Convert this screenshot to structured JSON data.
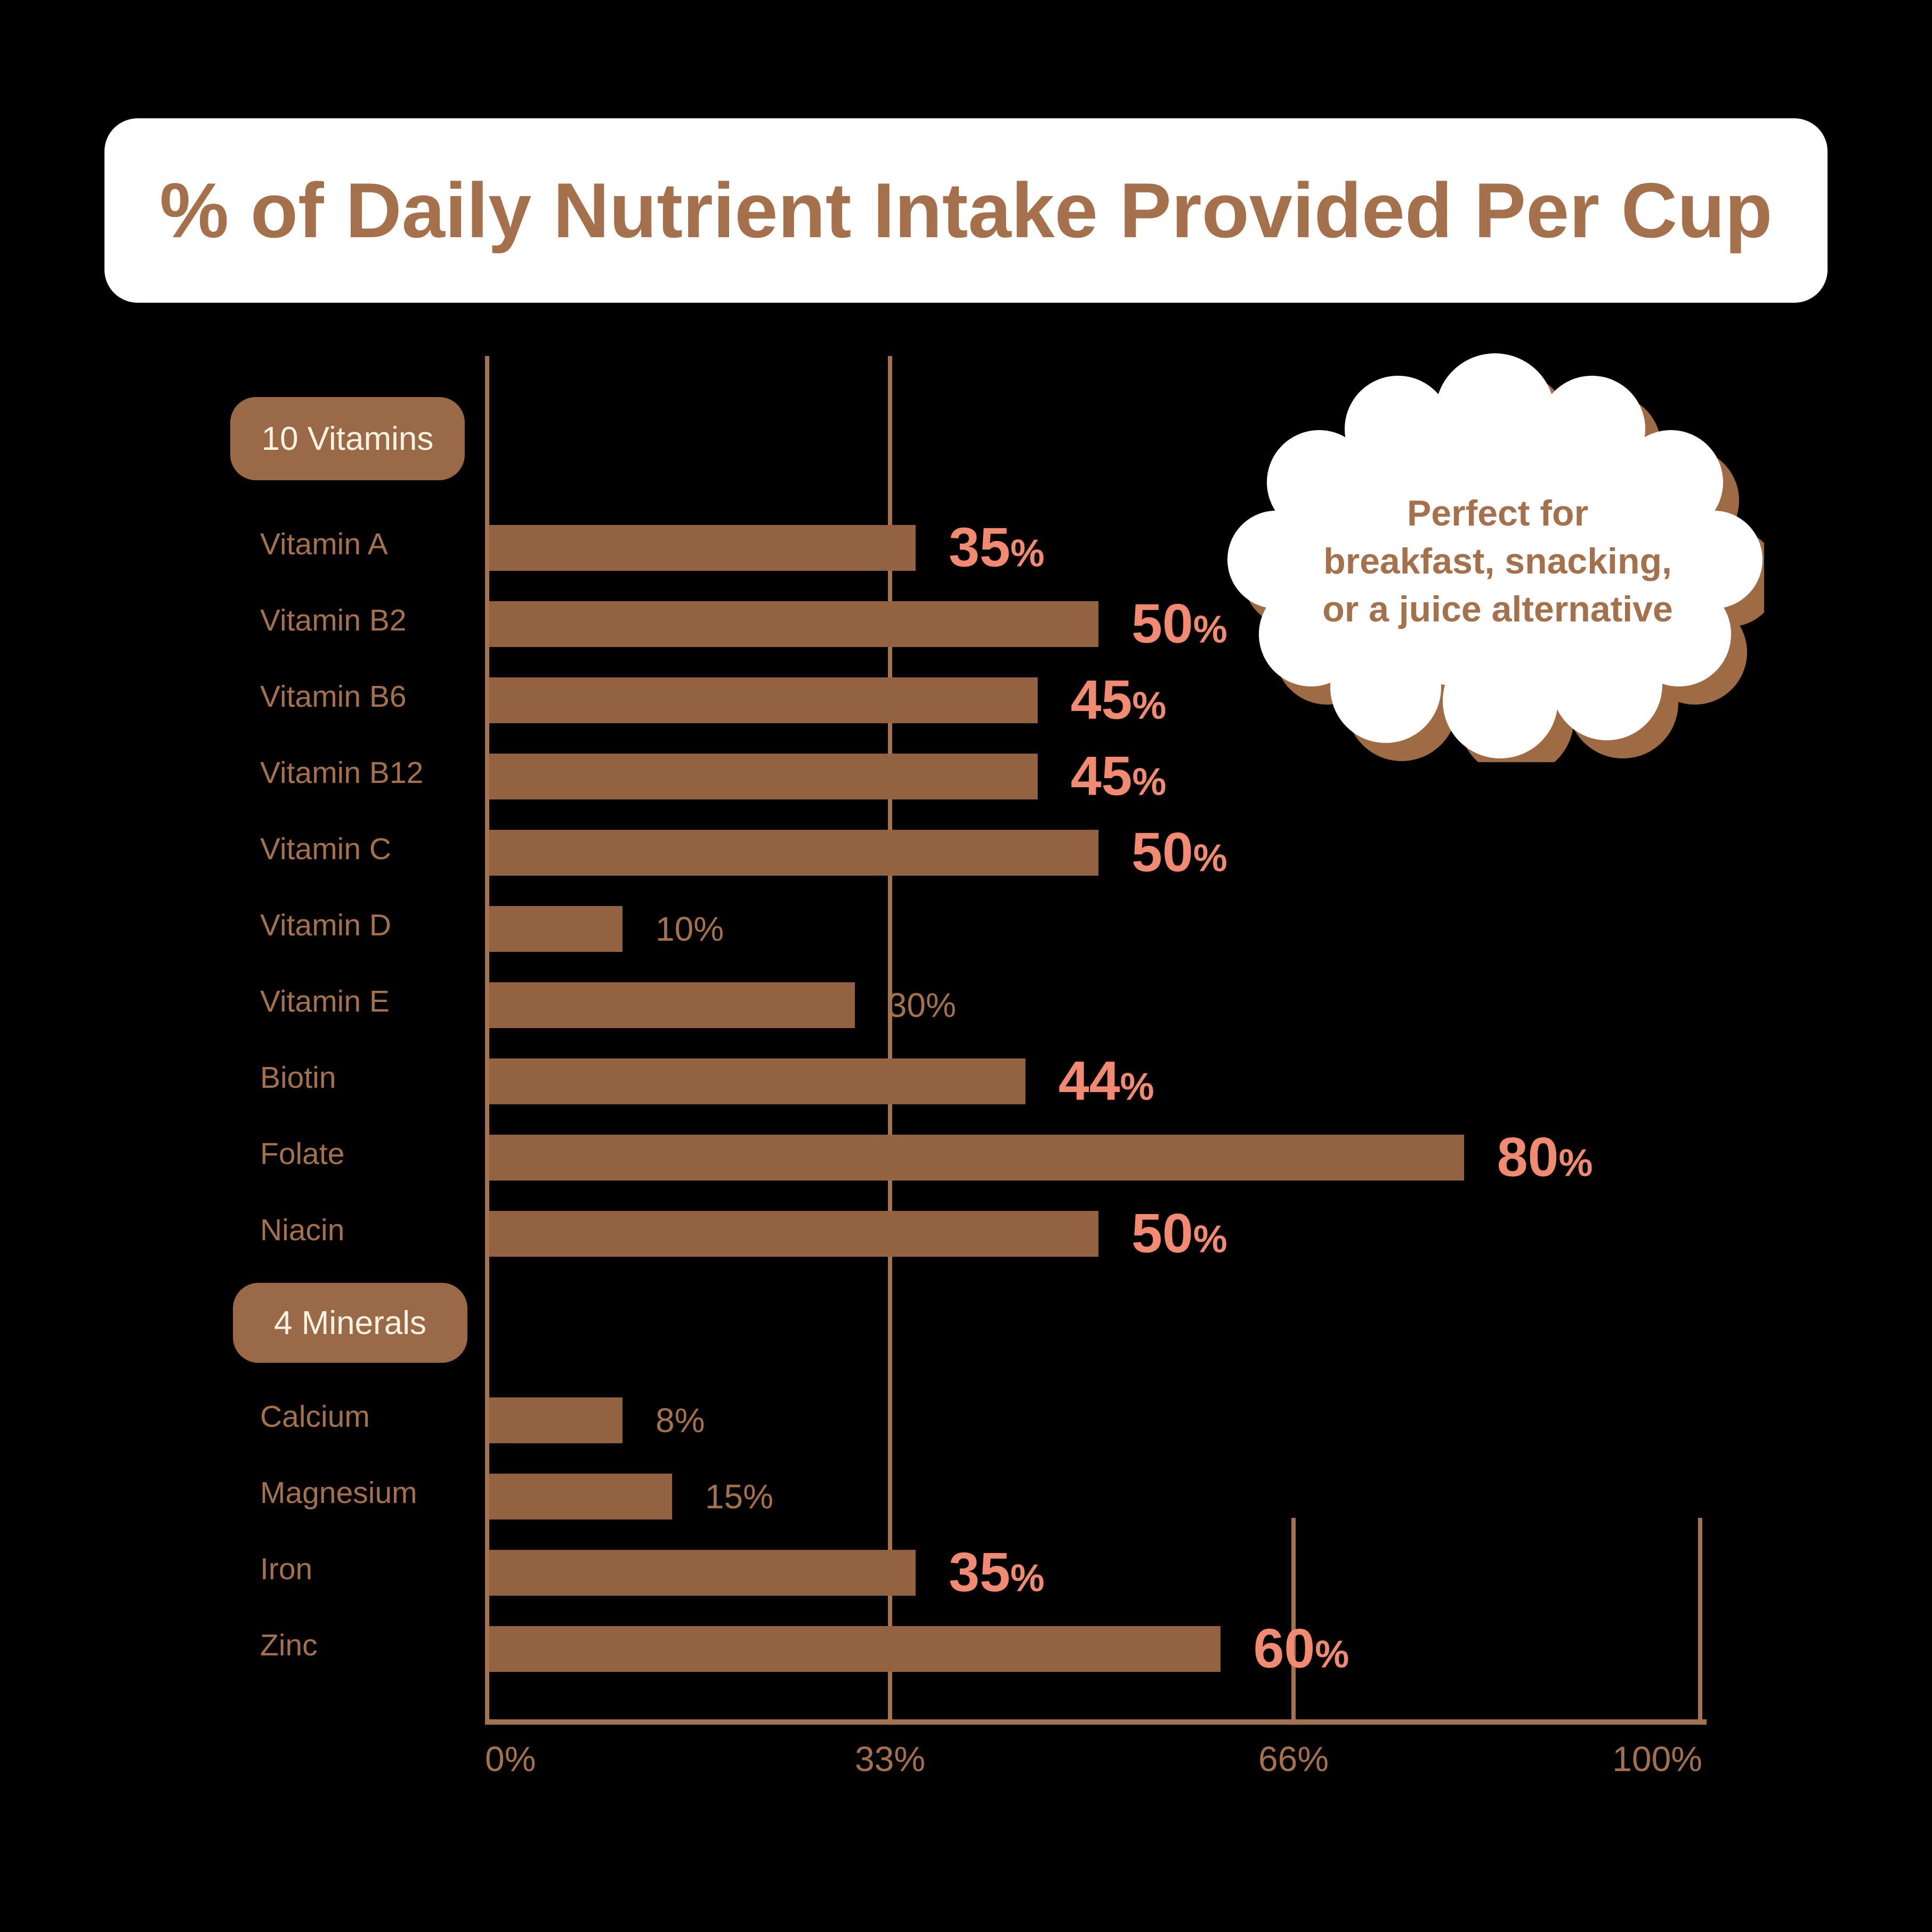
{
  "title": "% of Daily Nutrient Intake Provided Per Cup",
  "callout": {
    "lines": [
      "Perfect for",
      "breakfast, snacking,",
      "or a juice alternative"
    ]
  },
  "groups": [
    {
      "label": "10 Vitamins"
    },
    {
      "label": "4 Minerals"
    }
  ],
  "axis": {
    "ticks": [
      "0%",
      "33%",
      "66%",
      "100%"
    ]
  },
  "rows": [
    {
      "group": 0,
      "label": "Vitamin A",
      "value": 35,
      "value_label": "35%",
      "emphasis": true
    },
    {
      "group": 0,
      "label": "Vitamin B2",
      "value": 50,
      "value_label": "50%",
      "emphasis": true
    },
    {
      "group": 0,
      "label": "Vitamin B6",
      "value": 45,
      "value_label": "45%",
      "emphasis": true
    },
    {
      "group": 0,
      "label": "Vitamin B12",
      "value": 45,
      "value_label": "45%",
      "emphasis": true
    },
    {
      "group": 0,
      "label": "Vitamin C",
      "value": 50,
      "value_label": "50%",
      "emphasis": true
    },
    {
      "group": 0,
      "label": "Vitamin D",
      "value": 10,
      "value_label": "10%",
      "emphasis": false
    },
    {
      "group": 0,
      "label": "Vitamin E",
      "value": 30,
      "value_label": "30%",
      "emphasis": false
    },
    {
      "group": 0,
      "label": "Biotin",
      "value": 44,
      "value_label": "44%",
      "emphasis": true
    },
    {
      "group": 0,
      "label": "Folate",
      "value": 80,
      "value_label": "80%",
      "emphasis": true
    },
    {
      "group": 0,
      "label": "Niacin",
      "value": 50,
      "value_label": "50%",
      "emphasis": true
    },
    {
      "group": 1,
      "label": "Calcium",
      "value": 8,
      "value_label": "8%",
      "emphasis": false
    },
    {
      "group": 1,
      "label": "Magnesium",
      "value": 15,
      "value_label": "15%",
      "emphasis": false
    },
    {
      "group": 1,
      "label": "Iron",
      "value": 35,
      "value_label": "35%",
      "emphasis": true
    },
    {
      "group": 1,
      "label": "Zinc",
      "value": 60,
      "value_label": "60%",
      "emphasis": true
    }
  ],
  "colors": {
    "background": "#000000",
    "card": "#ffffff",
    "bar": "#936241",
    "badge": "#9a6a48",
    "badge_text": "#faf3e2",
    "label_brown": "#a5714c",
    "grid_brown": "#a2734e",
    "value_salmon": "#f28a72",
    "cloud_shadow": "#9e6b44"
  },
  "chart_data": {
    "type": "bar",
    "title": "% of Daily Nutrient Intake Provided Per Cup",
    "orientation": "horizontal",
    "categories": [
      "Vitamin A",
      "Vitamin B2",
      "Vitamin B6",
      "Vitamin B12",
      "Vitamin C",
      "Vitamin D",
      "Vitamin E",
      "Biotin",
      "Folate",
      "Niacin",
      "Calcium",
      "Magnesium",
      "Iron",
      "Zinc"
    ],
    "values": [
      35,
      50,
      45,
      45,
      50,
      10,
      30,
      44,
      80,
      50,
      8,
      15,
      35,
      60
    ],
    "group_of_category": [
      "10 Vitamins",
      "10 Vitamins",
      "10 Vitamins",
      "10 Vitamins",
      "10 Vitamins",
      "10 Vitamins",
      "10 Vitamins",
      "10 Vitamins",
      "10 Vitamins",
      "10 Vitamins",
      "4 Minerals",
      "4 Minerals",
      "4 Minerals",
      "4 Minerals"
    ],
    "xlabel": "",
    "ylabel": "",
    "xlim": [
      0,
      100
    ],
    "x_ticks": [
      "0%",
      "33%",
      "66%",
      "100%"
    ],
    "grid": "vertical gridlines at 0% and 33% full height; 66% and 100% lower section only",
    "legend": "none",
    "annotation": "Perfect for breakfast, snacking, or a juice alternative"
  }
}
